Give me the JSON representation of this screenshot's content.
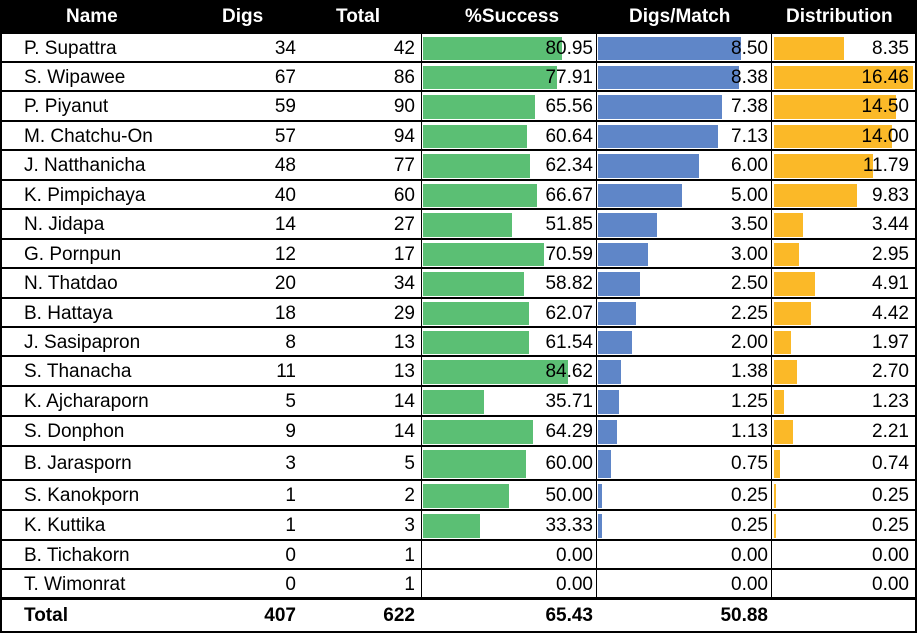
{
  "headers": {
    "name": "Name",
    "digs": "Digs",
    "total": "Total",
    "success": "%Success",
    "digs_match": "Digs/Match",
    "distribution": "Distribution"
  },
  "rows": [
    {
      "name": "P. Supattra",
      "digs": "34",
      "total": "42",
      "success": "80.95",
      "dm": "8.50",
      "dist": "8.35"
    },
    {
      "name": "S. Wipawee",
      "digs": "67",
      "total": "86",
      "success": "77.91",
      "dm": "8.38",
      "dist": "16.46"
    },
    {
      "name": "P. Piyanut",
      "digs": "59",
      "total": "90",
      "success": "65.56",
      "dm": "7.38",
      "dist": "14.50"
    },
    {
      "name": "M. Chatchu-On",
      "digs": "57",
      "total": "94",
      "success": "60.64",
      "dm": "7.13",
      "dist": "14.00"
    },
    {
      "name": "J. Natthanicha",
      "digs": "48",
      "total": "77",
      "success": "62.34",
      "dm": "6.00",
      "dist": "11.79"
    },
    {
      "name": "K. Pimpichaya",
      "digs": "40",
      "total": "60",
      "success": "66.67",
      "dm": "5.00",
      "dist": "9.83"
    },
    {
      "name": "N. Jidapa",
      "digs": "14",
      "total": "27",
      "success": "51.85",
      "dm": "3.50",
      "dist": "3.44"
    },
    {
      "name": "G. Pornpun",
      "digs": "12",
      "total": "17",
      "success": "70.59",
      "dm": "3.00",
      "dist": "2.95"
    },
    {
      "name": "N. Thatdao",
      "digs": "20",
      "total": "34",
      "success": "58.82",
      "dm": "2.50",
      "dist": "4.91"
    },
    {
      "name": "B. Hattaya",
      "digs": "18",
      "total": "29",
      "success": "62.07",
      "dm": "2.25",
      "dist": "4.42"
    },
    {
      "name": "J. Sasipapron",
      "digs": "8",
      "total": "13",
      "success": "61.54",
      "dm": "2.00",
      "dist": "1.97"
    },
    {
      "name": "S. Thanacha",
      "digs": "11",
      "total": "13",
      "success": "84.62",
      "dm": "1.38",
      "dist": "2.70"
    },
    {
      "name": "K. Ajcharaporn",
      "digs": "5",
      "total": "14",
      "success": "35.71",
      "dm": "1.25",
      "dist": "1.23"
    },
    {
      "name": "S. Donphon",
      "digs": "9",
      "total": "14",
      "success": "64.29",
      "dm": "1.13",
      "dist": "2.21"
    },
    {
      "name": "B. Jarasporn",
      "digs": "3",
      "total": "5",
      "success": "60.00",
      "dm": "0.75",
      "dist": "0.74"
    },
    {
      "name": "S. Kanokporn",
      "digs": "1",
      "total": "2",
      "success": "50.00",
      "dm": "0.25",
      "dist": "0.25"
    },
    {
      "name": "K. Kuttika",
      "digs": "1",
      "total": "3",
      "success": "33.33",
      "dm": "0.25",
      "dist": "0.25"
    },
    {
      "name": "B. Tichakorn",
      "digs": "0",
      "total": "1",
      "success": "0.00",
      "dm": "0.00",
      "dist": "0.00"
    },
    {
      "name": "T. Wimonrat",
      "digs": "0",
      "total": "1",
      "success": "0.00",
      "dm": "0.00",
      "dist": "0.00"
    }
  ],
  "total_row": {
    "name": "Total",
    "digs": "407",
    "total": "622",
    "success": "65.43",
    "dm": "50.88",
    "dist": ""
  },
  "colors": {
    "success_bar": "#5bbf74",
    "dm_bar": "#5f86c8",
    "dist_bar": "#fbb928",
    "header_bg": "#000000"
  },
  "bar_scale": {
    "success_max": 100,
    "dm_max": 8.5,
    "dist_max": 16.46
  }
}
